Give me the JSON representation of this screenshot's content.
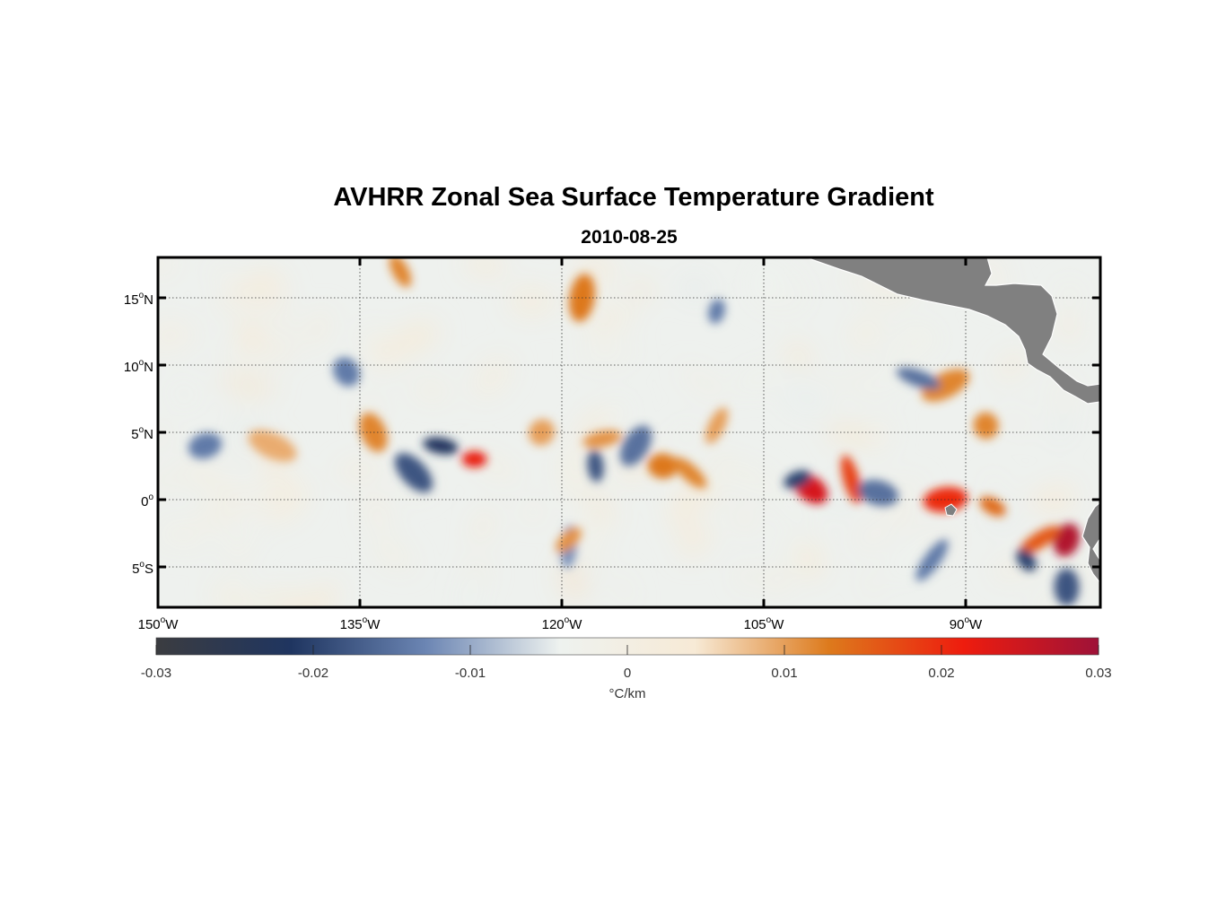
{
  "title": "AVHRR Zonal Sea Surface Temperature Gradient",
  "subtitle": "2010-08-25",
  "chart_data": {
    "type": "heatmap",
    "title": "AVHRR Zonal Sea Surface Temperature Gradient",
    "subtitle": "2010-08-25",
    "lon_range": [
      -150,
      -80
    ],
    "lat_range": [
      -8,
      18
    ],
    "x_ticks": [
      {
        "value": -150,
        "deg": "150",
        "hemi": "W"
      },
      {
        "value": -135,
        "deg": "135",
        "hemi": "W"
      },
      {
        "value": -120,
        "deg": "120",
        "hemi": "W"
      },
      {
        "value": -105,
        "deg": "105",
        "hemi": "W"
      },
      {
        "value": -90,
        "deg": "90",
        "hemi": "W"
      }
    ],
    "y_ticks": [
      {
        "value": 15,
        "deg": "15",
        "hemi": "N"
      },
      {
        "value": 10,
        "deg": "10",
        "hemi": "N"
      },
      {
        "value": 5,
        "deg": "5",
        "hemi": "N"
      },
      {
        "value": 0,
        "deg": "0",
        "hemi": ""
      },
      {
        "value": -5,
        "deg": "5",
        "hemi": "S"
      }
    ],
    "grid": "dotted",
    "colorbar": {
      "range": [
        -0.03,
        0.03
      ],
      "ticks": [
        "-0.03",
        "-0.02",
        "-0.01",
        "0",
        "0.01",
        "0.02",
        "0.03"
      ],
      "label": "°C/km",
      "stops": [
        "#3b3c40",
        "#1f3560",
        "#6b85b3",
        "#eef2ef",
        "#f7ead6",
        "#dd7a1c",
        "#ee1c0e",
        "#9e1238"
      ]
    },
    "land_color": "#808080",
    "features": [
      {
        "lon": -126.5,
        "lat": 3.0,
        "v": 0.022
      },
      {
        "lon": -101.5,
        "lat": 0.8,
        "v": 0.024
      },
      {
        "lon": -98.5,
        "lat": 1.5,
        "v": 0.018
      },
      {
        "lon": -82.5,
        "lat": -3.0,
        "v": 0.028
      },
      {
        "lon": -84.5,
        "lat": -3.0,
        "v": 0.016
      },
      {
        "lon": -112.5,
        "lat": 2.5,
        "v": 0.013
      },
      {
        "lon": -110.5,
        "lat": 2.0,
        "v": 0.012
      },
      {
        "lon": -88.5,
        "lat": 5.5,
        "v": 0.012
      },
      {
        "lon": -108.5,
        "lat": 5.5,
        "v": 0.01
      },
      {
        "lon": -91.5,
        "lat": 8.5,
        "v": 0.012
      },
      {
        "lon": -129.0,
        "lat": 4.0,
        "v": -0.022
      },
      {
        "lon": -131.0,
        "lat": 2.0,
        "v": -0.018
      },
      {
        "lon": -117.5,
        "lat": 2.5,
        "v": -0.018
      },
      {
        "lon": -114.5,
        "lat": 4.0,
        "v": -0.015
      },
      {
        "lon": -102.5,
        "lat": 1.5,
        "v": -0.02
      },
      {
        "lon": -96.5,
        "lat": 0.5,
        "v": -0.015
      },
      {
        "lon": -85.5,
        "lat": -4.5,
        "v": -0.02
      },
      {
        "lon": -82.5,
        "lat": -6.5,
        "v": -0.018
      },
      {
        "lon": -92.5,
        "lat": -4.5,
        "v": -0.014
      },
      {
        "lon": -146.5,
        "lat": 4.0,
        "v": -0.014
      },
      {
        "lon": -93.5,
        "lat": 9.0,
        "v": -0.015
      },
      {
        "lon": -136.0,
        "lat": 9.5,
        "v": -0.014
      },
      {
        "lon": -119.5,
        "lat": -3.5,
        "v": -0.012
      },
      {
        "lon": -121.5,
        "lat": 5.0,
        "v": 0.01
      },
      {
        "lon": -117.0,
        "lat": 4.5,
        "v": 0.011
      },
      {
        "lon": -141.5,
        "lat": 4.0,
        "v": 0.009
      },
      {
        "lon": -132.0,
        "lat": 17.0,
        "v": 0.012
      },
      {
        "lon": -118.5,
        "lat": 15.0,
        "v": 0.013
      },
      {
        "lon": -119.5,
        "lat": -3.0,
        "v": 0.011
      },
      {
        "lon": -91.5,
        "lat": 0.0,
        "v": 0.02
      },
      {
        "lon": -88.0,
        "lat": -0.5,
        "v": 0.014
      },
      {
        "lon": -134.0,
        "lat": 5.0,
        "v": 0.012
      },
      {
        "lon": -108.5,
        "lat": 14.0,
        "v": -0.014
      }
    ]
  }
}
